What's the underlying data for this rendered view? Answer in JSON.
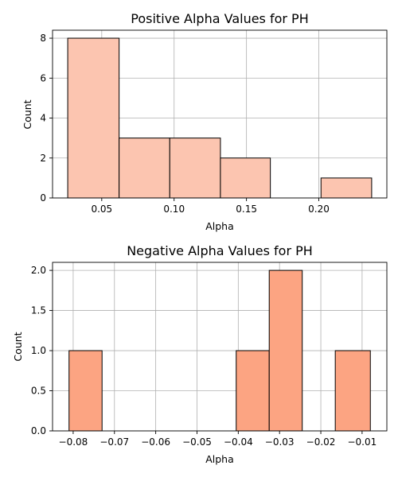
{
  "colors": {
    "bar_edge": "#000000",
    "grid": "#b0b0b0",
    "axis": "#000000"
  },
  "chart_data": [
    {
      "type": "bar",
      "subtype": "histogram",
      "title": "Positive Alpha Values for PH",
      "xlabel": "Alpha",
      "ylabel": "Count",
      "bins": [
        {
          "x0": 0.0265,
          "x1": 0.062,
          "count": 8
        },
        {
          "x0": 0.062,
          "x1": 0.097,
          "count": 3
        },
        {
          "x0": 0.097,
          "x1": 0.132,
          "count": 3
        },
        {
          "x0": 0.132,
          "x1": 0.1665,
          "count": 2
        },
        {
          "x0": 0.1665,
          "x1": 0.2015,
          "count": 0
        },
        {
          "x0": 0.2015,
          "x1": 0.2365,
          "count": 1
        }
      ],
      "xlim": [
        0.016,
        0.247
      ],
      "ylim": [
        0,
        8.4
      ],
      "xticks": [
        0.05,
        0.1,
        0.15,
        0.2
      ],
      "xtick_labels": [
        "0.05",
        "0.10",
        "0.15",
        "0.20"
      ],
      "yticks": [
        0,
        2,
        4,
        6,
        8
      ],
      "ytick_labels": [
        "0",
        "2",
        "4",
        "6",
        "8"
      ],
      "grid": true,
      "bar_color": "#fcc5b0"
    },
    {
      "type": "bar",
      "subtype": "histogram",
      "title": "Negative Alpha Values for PH",
      "xlabel": "Alpha",
      "ylabel": "Count",
      "bins": [
        {
          "x0": -0.081,
          "x1": -0.073,
          "count": 1
        },
        {
          "x0": -0.073,
          "x1": -0.065,
          "count": 0
        },
        {
          "x0": -0.065,
          "x1": -0.057,
          "count": 0
        },
        {
          "x0": -0.057,
          "x1": -0.049,
          "count": 0
        },
        {
          "x0": -0.049,
          "x1": -0.0405,
          "count": 0
        },
        {
          "x0": -0.0405,
          "x1": -0.0325,
          "count": 1
        },
        {
          "x0": -0.0325,
          "x1": -0.0245,
          "count": 2
        },
        {
          "x0": -0.0245,
          "x1": -0.0165,
          "count": 0
        },
        {
          "x0": -0.0165,
          "x1": -0.008,
          "count": 1
        }
      ],
      "xlim": [
        -0.085,
        -0.004
      ],
      "ylim": [
        0,
        2.1
      ],
      "xticks": [
        -0.08,
        -0.07,
        -0.06,
        -0.05,
        -0.04,
        -0.03,
        -0.02,
        -0.01
      ],
      "xtick_labels": [
        "−0.08",
        "−0.07",
        "−0.06",
        "−0.05",
        "−0.04",
        "−0.03",
        "−0.02",
        "−0.01"
      ],
      "yticks": [
        0.0,
        0.5,
        1.0,
        1.5,
        2.0
      ],
      "ytick_labels": [
        "0.0",
        "0.5",
        "1.0",
        "1.5",
        "2.0"
      ],
      "grid": true,
      "bar_color": "#fca482"
    }
  ]
}
